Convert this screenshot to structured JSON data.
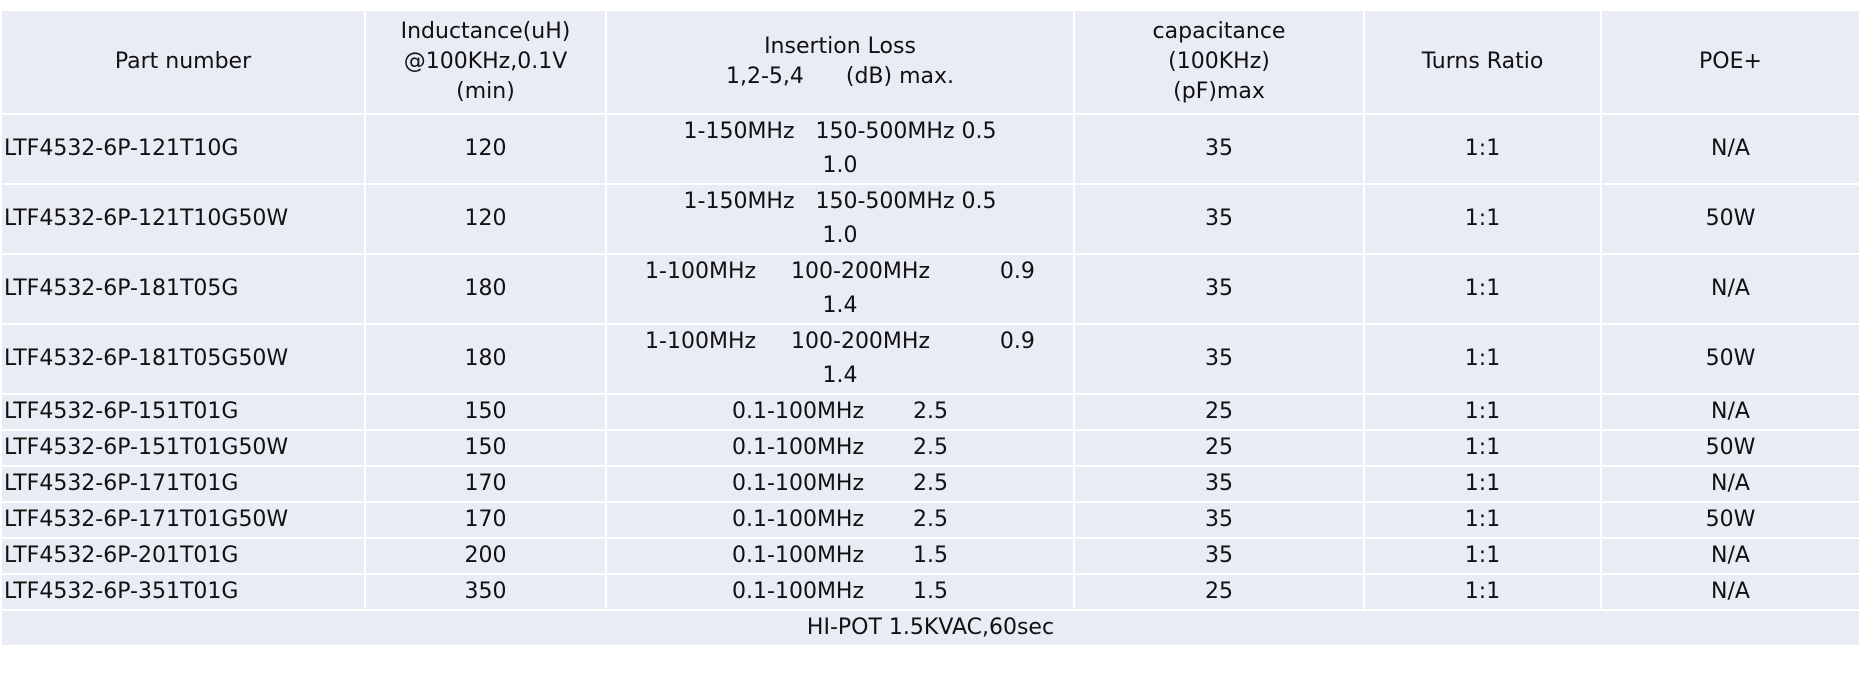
{
  "table": {
    "header": [
      [
        "Part number"
      ],
      [
        "Inductance(uH)",
        "@100KHz,0.1V",
        "(min)"
      ],
      [
        "Insertion Loss",
        "1,2-5,4      (dB) max."
      ],
      [
        "capacitance",
        "(100KHz)",
        "(pF)max"
      ],
      [
        "Turns Ratio"
      ],
      [
        "POE+"
      ]
    ],
    "rows": [
      [
        "LTF4532-6P-121T10G",
        "120",
        [
          "1-150MHz   150-500MHz 0.5",
          "1.0"
        ],
        "35",
        "1:1",
        "N/A"
      ],
      [
        "LTF4532-6P-121T10G50W",
        "120",
        [
          "1-150MHz   150-500MHz 0.5",
          "1.0"
        ],
        "35",
        "1:1",
        "50W"
      ],
      [
        "LTF4532-6P-181T05G",
        "180",
        [
          "1-100MHz     100-200MHz          0.9",
          "1.4"
        ],
        "35",
        "1:1",
        "N/A"
      ],
      [
        "LTF4532-6P-181T05G50W",
        "180",
        [
          "1-100MHz     100-200MHz          0.9",
          "1.4"
        ],
        "35",
        "1:1",
        "50W"
      ],
      [
        "LTF4532-6P-151T01G",
        "150",
        [
          "0.1-100MHz       2.5"
        ],
        "25",
        "1:1",
        "N/A"
      ],
      [
        "LTF4532-6P-151T01G50W",
        "150",
        [
          "0.1-100MHz       2.5"
        ],
        "25",
        "1:1",
        "50W"
      ],
      [
        "LTF4532-6P-171T01G",
        "170",
        [
          "0.1-100MHz       2.5"
        ],
        "35",
        "1:1",
        "N/A"
      ],
      [
        "LTF4532-6P-171T01G50W",
        "170",
        [
          "0.1-100MHz       2.5"
        ],
        "35",
        "1:1",
        "50W"
      ],
      [
        "LTF4532-6P-201T01G",
        "200",
        [
          "0.1-100MHz       1.5"
        ],
        "35",
        "1:1",
        "N/A"
      ],
      [
        "LTF4532-6P-351T01G",
        "350",
        [
          "0.1-100MHz       1.5"
        ],
        "25",
        "1:1",
        "N/A"
      ]
    ],
    "footer": "HI-POT 1.5KVAC,60sec"
  }
}
